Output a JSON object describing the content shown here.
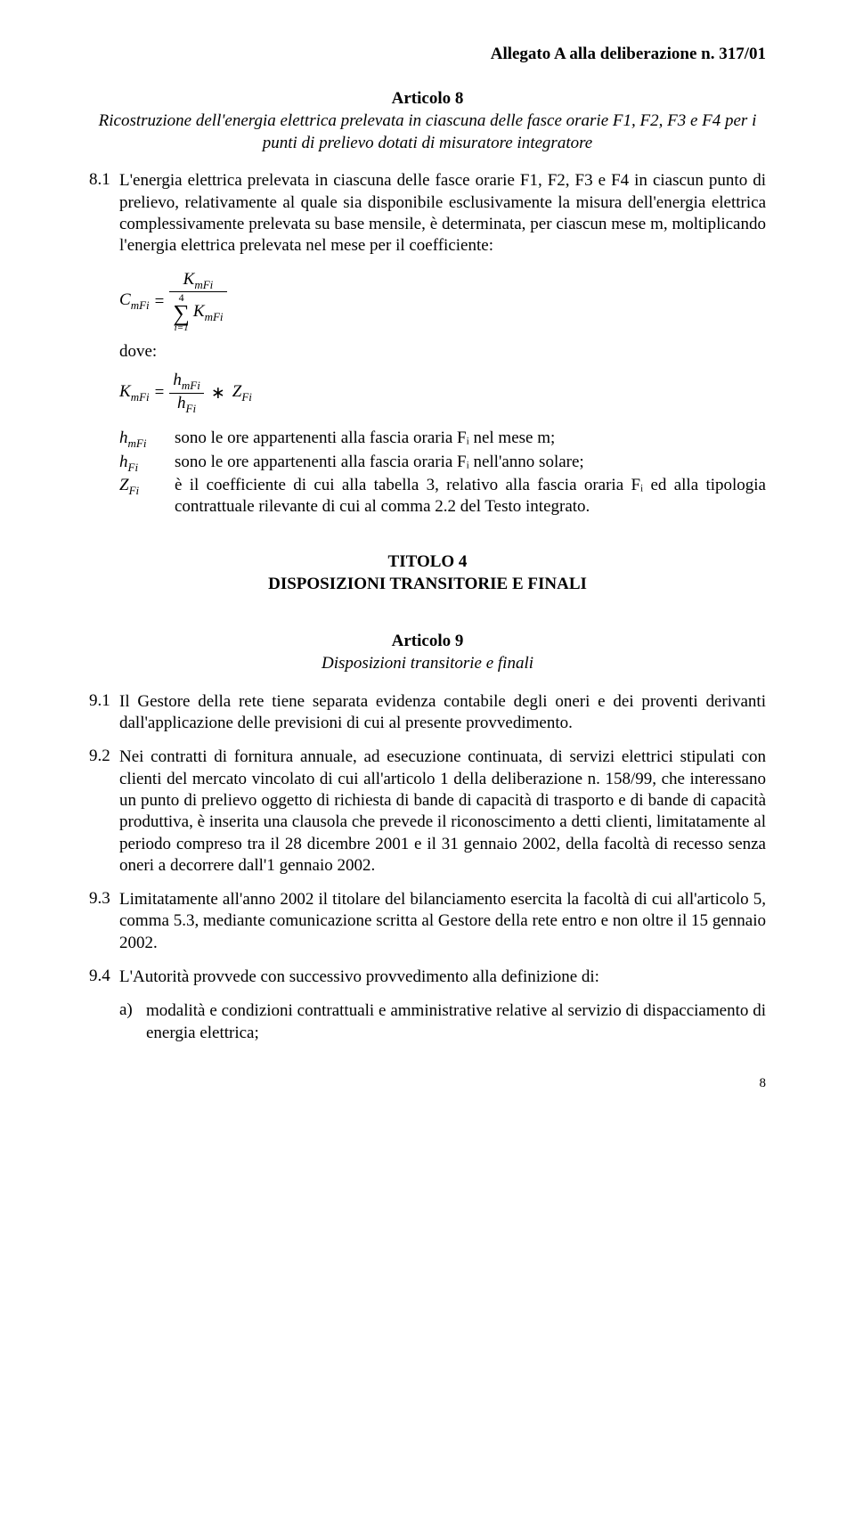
{
  "header": "Allegato A alla deliberazione n. 317/01",
  "article8": {
    "title": "Articolo 8",
    "subtitle": "Ricostruzione dell'energia elettrica prelevata in ciascuna delle fasce orarie F1, F2, F3 e F4 per i punti di prelievo dotati di misuratore integratore",
    "p81_num": "8.1",
    "p81_text": "L'energia elettrica prelevata in ciascuna delle fasce orarie F1, F2, F3 e F4 in ciascun punto di prelievo, relativamente al quale sia disponibile esclusivamente la misura dell'energia elettrica complessivamente prelevata su base mensile, è determinata, per ciascun mese m, moltiplicando l'energia elettrica prelevata nel mese per il coefficiente:",
    "formula1_lhs_base": "C",
    "formula1_lhs_sub": "mFi",
    "formula1_num_base": "K",
    "formula1_num_sub": "mFi",
    "formula1_sigma_top": "4",
    "formula1_sigma_bot": "i=1",
    "formula1_den_base": "K",
    "formula1_den_sub": "mFi",
    "dove": "dove:",
    "formula2_lhs_base": "K",
    "formula2_lhs_sub": "mFi",
    "formula2_num_base": "h",
    "formula2_num_sub": "mFi",
    "formula2_den_base": "h",
    "formula2_den_sub": "Fi",
    "formula2_rhs_base": "Z",
    "formula2_rhs_sub": "Fi",
    "def_hmFi_sym": "h",
    "def_hmFi_sub": "mFi",
    "def_hmFi_txt": "sono le ore appartenenti alla fascia oraria Fᵢ nel mese m;",
    "def_hFi_sym": "h",
    "def_hFi_sub": "Fi",
    "def_hFi_txt": "sono le ore appartenenti alla fascia oraria Fᵢ nell'anno solare;",
    "def_ZFi_sym": "Z",
    "def_ZFi_sub": "Fi",
    "def_ZFi_txt": "è il coefficiente di cui alla tabella 3, relativo alla fascia oraria Fᵢ ed alla tipologia contrattuale rilevante di cui al comma 2.2 del Testo integrato."
  },
  "titolo4": {
    "line1": "TITOLO 4",
    "line2": "DISPOSIZIONI TRANSITORIE E FINALI"
  },
  "article9": {
    "title": "Articolo 9",
    "subtitle": "Disposizioni transitorie e finali",
    "p91_num": "9.1",
    "p91_text": "Il Gestore della rete tiene separata evidenza contabile degli oneri e dei proventi derivanti dall'applicazione delle previsioni di cui al presente provvedimento.",
    "p92_num": "9.2",
    "p92_text": "Nei contratti di fornitura annuale, ad esecuzione continuata, di servizi elettrici stipulati con clienti del mercato vincolato di cui all'articolo 1 della deliberazione n. 158/99, che interessano un punto di prelievo oggetto di richiesta di bande di capacità di trasporto e di bande di capacità produttiva, è inserita una clausola che prevede il riconoscimento a detti clienti, limitatamente al periodo compreso tra il 28 dicembre 2001 e il 31 gennaio 2002, della facoltà di recesso senza oneri a decorrere dall'1 gennaio 2002.",
    "p93_num": "9.3",
    "p93_text": "Limitatamente all'anno 2002 il titolare del bilanciamento esercita la facoltà di cui all'articolo 5, comma 5.3, mediante comunicazione scritta al Gestore della rete entro e non oltre il 15 gennaio 2002.",
    "p94_num": "9.4",
    "p94_text": "L'Autorità provvede con successivo provvedimento alla definizione di:",
    "p94a_let": "a)",
    "p94a_text": "modalità e condizioni contrattuali e amministrative relative al servizio di dispacciamento di energia elettrica;"
  },
  "pagenum": "8"
}
